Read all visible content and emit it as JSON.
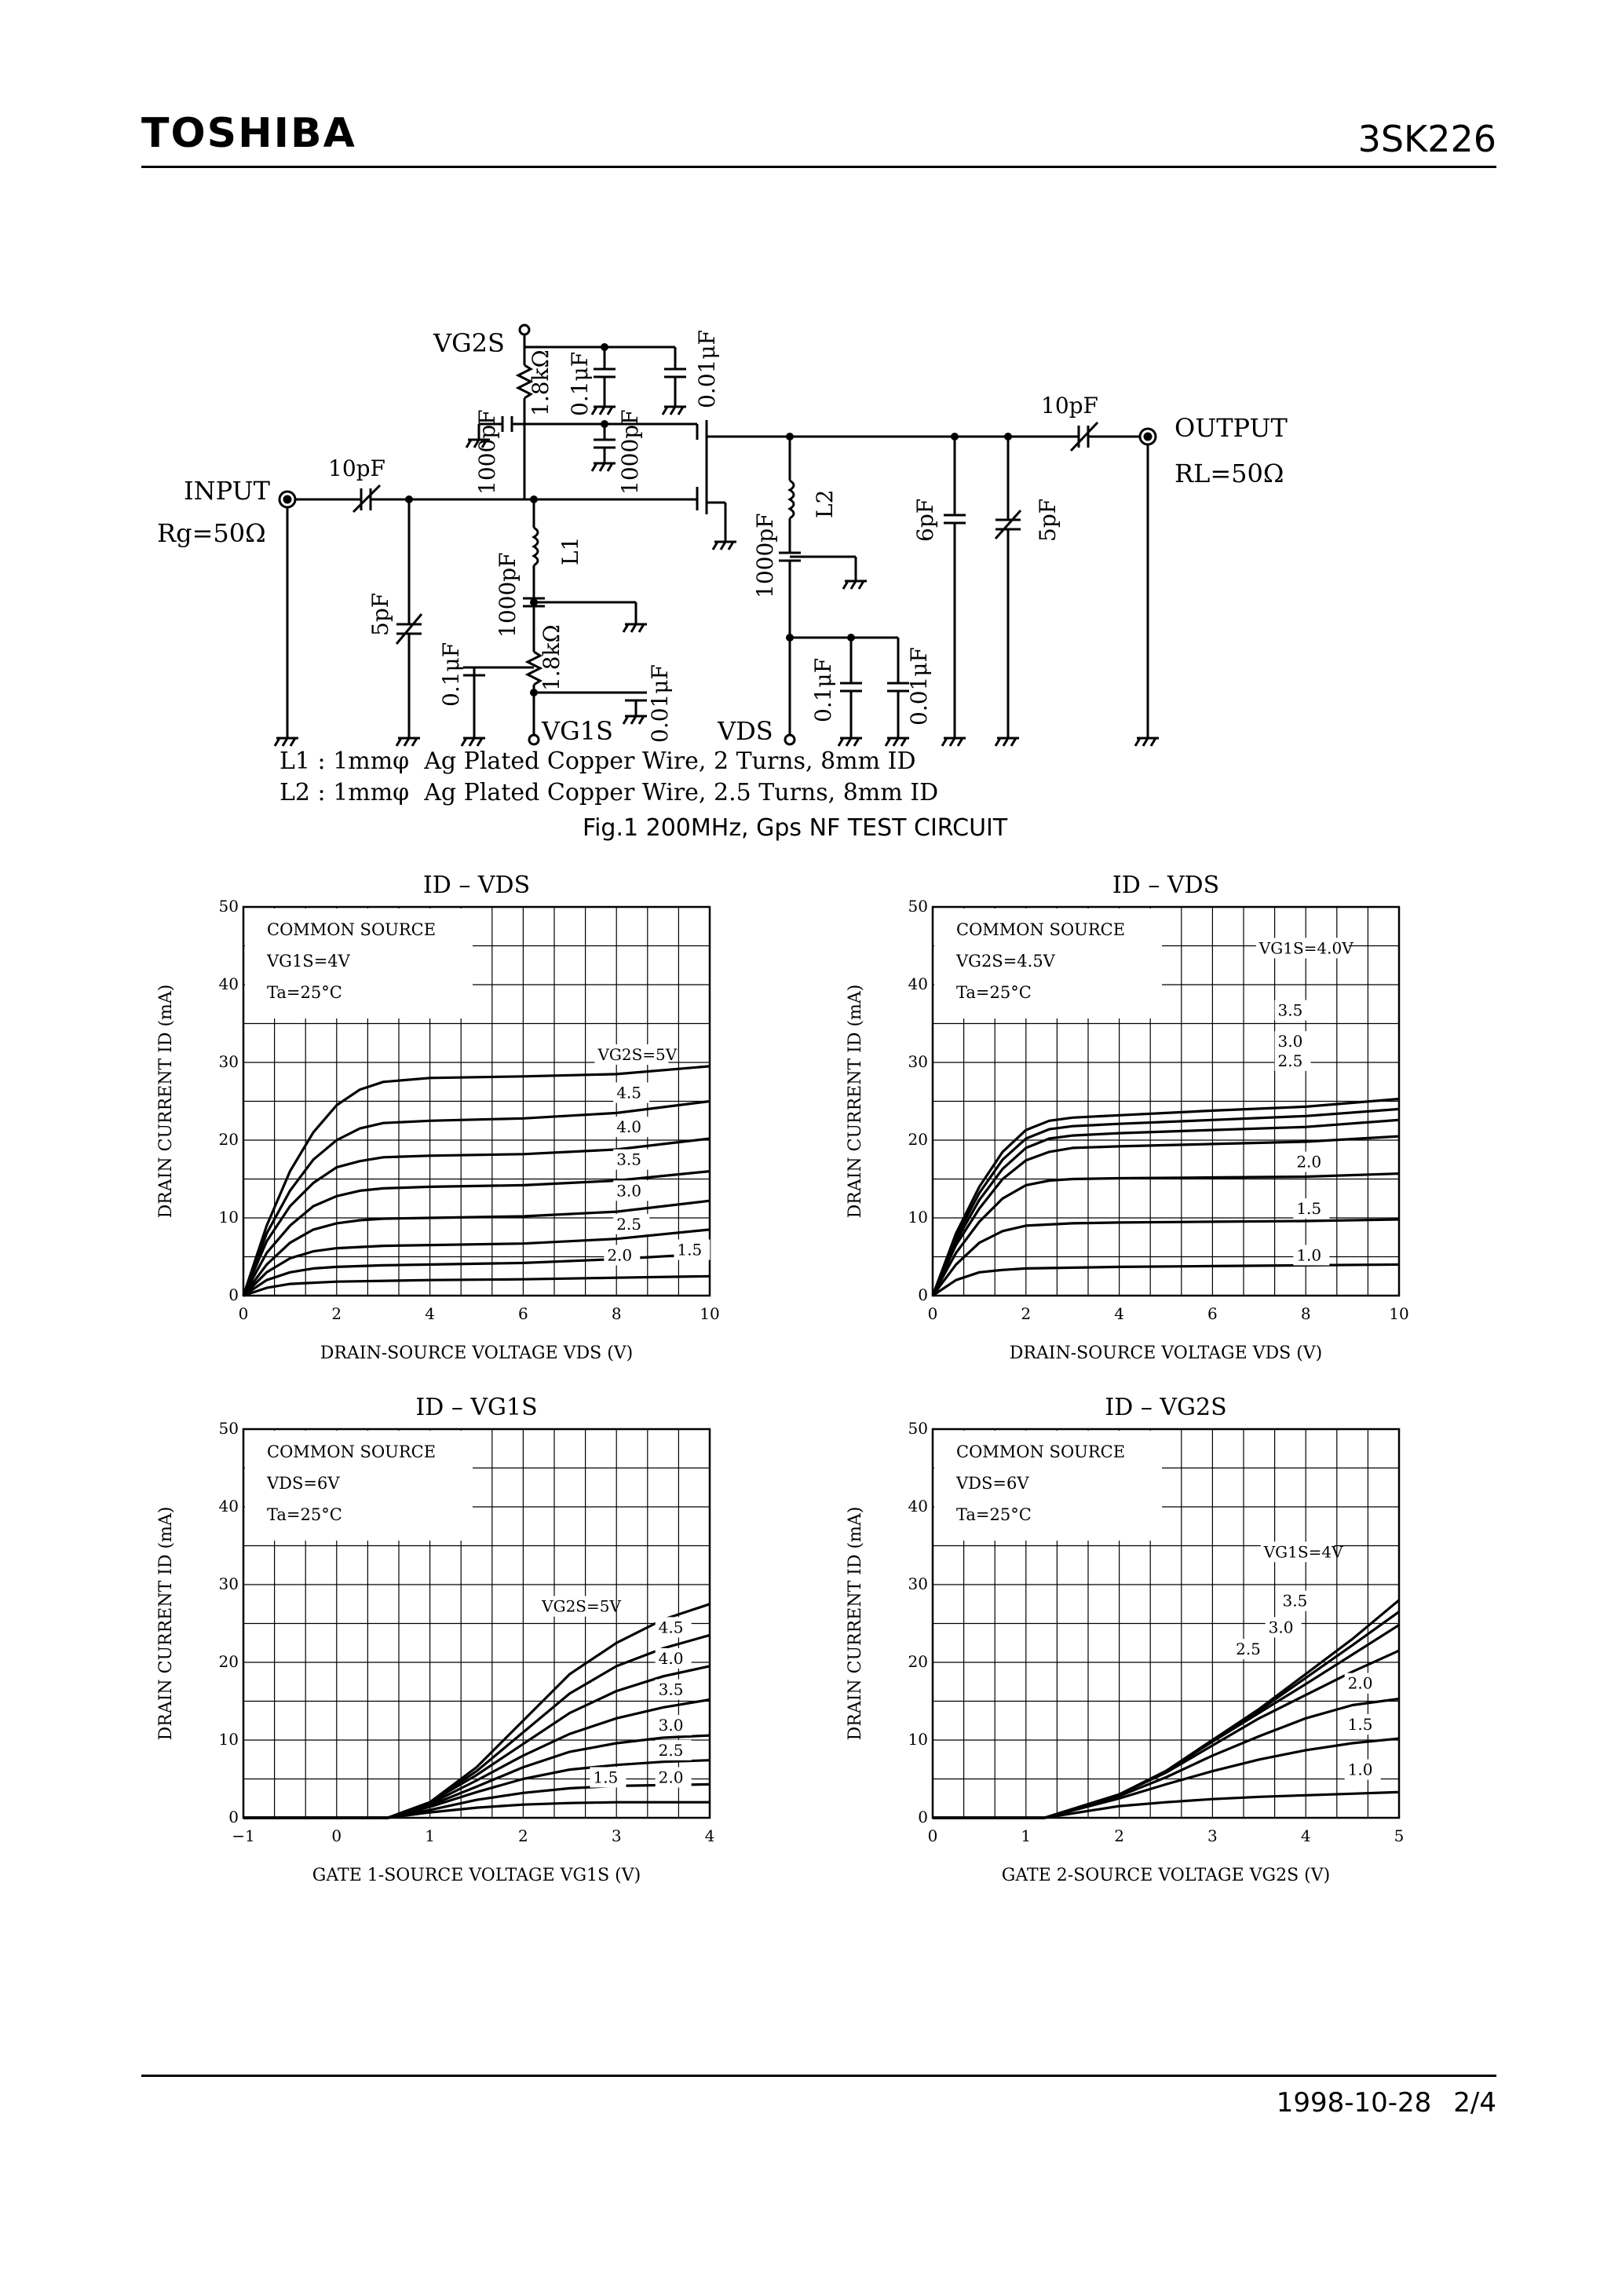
{
  "header": {
    "brand": "TOSHIBA",
    "part_number": "3SK226"
  },
  "circuit": {
    "input_label": "INPUT",
    "rg_label": "Rg=50Ω",
    "output_label": "OUTPUT",
    "rl_label": "RL=50Ω",
    "vg2s_label": "VG2S",
    "vg1s_label": "VG1S",
    "vds_label": "VDS",
    "components": [
      "10pF",
      "10pF",
      "5pF",
      "0.1μF",
      "1000pF",
      "L1",
      "1.8kΩ",
      "0.01μF",
      "1.8kΩ",
      "0.1μF",
      "0.01μF",
      "1000pF",
      "1000pF",
      "L2",
      "1000pF",
      "0.1μF",
      "0.01μF",
      "6pF",
      "5pF"
    ],
    "notes": [
      "L1 : 1mmφ  Ag Plated Copper Wire, 2 Turns, 8mm ID",
      "L2 : 1mmφ  Ag Plated Copper Wire, 2.5 Turns, 8mm ID"
    ],
    "caption": "Fig.1  200MHz, Gps NF TEST CIRCUIT"
  },
  "chart_data": [
    {
      "type": "line",
      "title": "ID – VDS",
      "xlabel": "DRAIN-SOURCE VOLTAGE  VDS  (V)",
      "ylabel": "DRAIN CURRENT  ID  (mA)",
      "xlim": [
        0,
        10
      ],
      "ylim": [
        0,
        50
      ],
      "xticks": [
        "0",
        "2",
        "4",
        "6",
        "8",
        "10"
      ],
      "yticks": [
        "0",
        "10",
        "20",
        "30",
        "40",
        "50"
      ],
      "grid": true,
      "conditions": [
        "COMMON SOURCE",
        "VG1S=4V",
        "Ta=25°C"
      ],
      "series": [
        {
          "name": "VG2S=5V",
          "x": [
            0,
            0.5,
            1,
            1.5,
            2,
            2.5,
            3,
            4,
            6,
            8,
            10
          ],
          "y": [
            0,
            9,
            16,
            21,
            24.5,
            26.5,
            27.5,
            28,
            28.2,
            28.5,
            29.5
          ]
        },
        {
          "name": "4.5",
          "x": [
            0,
            0.5,
            1,
            1.5,
            2,
            2.5,
            3,
            4,
            6,
            8,
            10
          ],
          "y": [
            0,
            8,
            13.5,
            17.5,
            20,
            21.5,
            22.2,
            22.5,
            22.8,
            23.5,
            25
          ]
        },
        {
          "name": "4.0",
          "x": [
            0,
            0.5,
            1,
            1.5,
            2,
            2.5,
            3,
            4,
            6,
            8,
            10
          ],
          "y": [
            0,
            7,
            11.5,
            14.5,
            16.5,
            17.3,
            17.8,
            18,
            18.2,
            18.8,
            20.2
          ]
        },
        {
          "name": "3.5",
          "x": [
            0,
            0.5,
            1,
            1.5,
            2,
            2.5,
            3,
            4,
            6,
            8,
            10
          ],
          "y": [
            0,
            5.5,
            9,
            11.5,
            12.8,
            13.5,
            13.8,
            14,
            14.2,
            14.8,
            16
          ]
        },
        {
          "name": "3.0",
          "x": [
            0,
            0.5,
            1,
            1.5,
            2,
            2.5,
            3,
            4,
            6,
            8,
            10
          ],
          "y": [
            0,
            4,
            6.8,
            8.5,
            9.3,
            9.7,
            9.9,
            10,
            10.2,
            10.8,
            12.2
          ]
        },
        {
          "name": "2.5",
          "x": [
            0,
            0.5,
            1,
            1.5,
            2,
            3,
            4,
            6,
            8,
            10
          ],
          "y": [
            0,
            3,
            4.8,
            5.7,
            6.1,
            6.4,
            6.5,
            6.7,
            7.3,
            8.5
          ]
        },
        {
          "name": "2.0",
          "x": [
            0,
            0.5,
            1,
            1.5,
            2,
            3,
            4,
            6,
            8,
            10
          ],
          "y": [
            0,
            2,
            3,
            3.5,
            3.7,
            3.9,
            4,
            4.2,
            4.7,
            5.4
          ]
        },
        {
          "name": "1.5",
          "x": [
            0,
            0.5,
            1,
            2,
            4,
            6,
            8,
            10
          ],
          "y": [
            0,
            1,
            1.5,
            1.8,
            2,
            2.1,
            2.3,
            2.5
          ]
        }
      ],
      "labels": [
        {
          "text": "VG2S=5V"
        },
        {
          "text": "4.5"
        },
        {
          "text": "4.0"
        },
        {
          "text": "3.5"
        },
        {
          "text": "3.0"
        },
        {
          "text": "2.5"
        },
        {
          "text": "2.0"
        },
        {
          "text": "1.5"
        }
      ]
    },
    {
      "type": "line",
      "title": "ID – VDS",
      "xlabel": "DRAIN-SOURCE VOLTAGE  VDS  (V)",
      "ylabel": "DRAIN CURRENT  ID  (mA)",
      "xlim": [
        0,
        10
      ],
      "ylim": [
        0,
        50
      ],
      "xticks": [
        "0",
        "2",
        "4",
        "6",
        "8",
        "10"
      ],
      "yticks": [
        "0",
        "10",
        "20",
        "30",
        "40",
        "50"
      ],
      "grid": true,
      "conditions": [
        "COMMON SOURCE",
        "VG2S=4.5V",
        "Ta=25°C"
      ],
      "series": [
        {
          "name": "VG1S=4.0V",
          "x": [
            0,
            0.5,
            1,
            1.5,
            2,
            2.5,
            3,
            4,
            6,
            8,
            10
          ],
          "y": [
            0,
            8,
            14,
            18.5,
            21.3,
            22.5,
            22.9,
            23.2,
            23.8,
            24.3,
            25.3
          ]
        },
        {
          "name": "3.5",
          "x": [
            0,
            0.5,
            1,
            1.5,
            2,
            2.5,
            3,
            4,
            6,
            8,
            10
          ],
          "y": [
            0,
            7.5,
            13.2,
            17.5,
            20.2,
            21.4,
            21.8,
            22.1,
            22.6,
            23.1,
            24
          ]
        },
        {
          "name": "3.0",
          "x": [
            0,
            0.5,
            1,
            1.5,
            2,
            2.5,
            3,
            4,
            6,
            8,
            10
          ],
          "y": [
            0,
            7,
            12.3,
            16.3,
            19,
            20.2,
            20.6,
            20.9,
            21.3,
            21.7,
            22.6
          ]
        },
        {
          "name": "2.5",
          "x": [
            0,
            0.5,
            1,
            1.5,
            2,
            2.5,
            3,
            4,
            6,
            8,
            10
          ],
          "y": [
            0,
            6.5,
            11.2,
            15,
            17.4,
            18.5,
            19,
            19.2,
            19.5,
            19.8,
            20.5
          ]
        },
        {
          "name": "2.0",
          "x": [
            0,
            0.5,
            1,
            1.5,
            2,
            2.5,
            3,
            4,
            6,
            8,
            10
          ],
          "y": [
            0,
            5.5,
            9.5,
            12.5,
            14.2,
            14.8,
            15,
            15.1,
            15.2,
            15.3,
            15.7
          ]
        },
        {
          "name": "1.5",
          "x": [
            0,
            0.5,
            1,
            1.5,
            2,
            3,
            4,
            6,
            8,
            10
          ],
          "y": [
            0,
            4,
            6.8,
            8.3,
            9,
            9.3,
            9.4,
            9.5,
            9.6,
            9.8
          ]
        },
        {
          "name": "1.0",
          "x": [
            0,
            0.5,
            1,
            1.5,
            2,
            3,
            4,
            6,
            8,
            10
          ],
          "y": [
            0,
            2,
            3,
            3.3,
            3.5,
            3.6,
            3.7,
            3.8,
            3.9,
            4
          ]
        }
      ],
      "labels": [
        {
          "text": "VG1S=4.0V"
        },
        {
          "text": "3.5"
        },
        {
          "text": "3.0"
        },
        {
          "text": "2.5"
        },
        {
          "text": "2.0"
        },
        {
          "text": "1.5"
        },
        {
          "text": "1.0"
        }
      ]
    },
    {
      "type": "line",
      "title": "ID – VG1S",
      "xlabel": "GATE 1-SOURCE VOLTAGE  VG1S  (V)",
      "ylabel": "DRAIN CURRENT  ID  (mA)",
      "xlim": [
        -1,
        4
      ],
      "ylim": [
        0,
        50
      ],
      "xticks": [
        "−1",
        "0",
        "1",
        "2",
        "3",
        "4"
      ],
      "yticks": [
        "0",
        "10",
        "20",
        "30",
        "40",
        "50"
      ],
      "grid": true,
      "conditions": [
        "COMMON SOURCE",
        "VDS=6V",
        "Ta=25°C"
      ],
      "series": [
        {
          "name": "VG2S=5V",
          "x": [
            -1,
            0.55,
            1,
            1.5,
            2,
            2.5,
            3,
            3.5,
            4
          ],
          "y": [
            0,
            0,
            2,
            6.5,
            12.5,
            18.5,
            22.5,
            25.5,
            27.5
          ]
        },
        {
          "name": "4.5",
          "x": [
            -1,
            0.55,
            1,
            1.5,
            2,
            2.5,
            3,
            3.5,
            4
          ],
          "y": [
            0,
            0,
            2,
            6,
            11,
            16,
            19.5,
            21.8,
            23.5
          ]
        },
        {
          "name": "4.0",
          "x": [
            -1,
            0.55,
            1,
            1.5,
            2,
            2.5,
            3,
            3.5,
            4
          ],
          "y": [
            0,
            0,
            2,
            5.5,
            9.5,
            13.5,
            16.3,
            18.2,
            19.5
          ]
        },
        {
          "name": "3.5",
          "x": [
            -1,
            0.55,
            1,
            1.5,
            2,
            2.5,
            3,
            3.5,
            4
          ],
          "y": [
            0,
            0,
            1.8,
            4.8,
            8,
            10.8,
            12.8,
            14.2,
            15.2
          ]
        },
        {
          "name": "3.0",
          "x": [
            -1,
            0.55,
            1,
            1.5,
            2,
            2.5,
            3,
            3.5,
            4
          ],
          "y": [
            0,
            0,
            1.6,
            4,
            6.5,
            8.5,
            9.6,
            10.3,
            10.6
          ]
        },
        {
          "name": "2.5",
          "x": [
            -1,
            0.55,
            1,
            1.5,
            2,
            2.5,
            3,
            3.5,
            4
          ],
          "y": [
            0,
            0,
            1.4,
            3.3,
            5,
            6.2,
            6.8,
            7.2,
            7.4
          ]
        },
        {
          "name": "2.0",
          "x": [
            -1,
            0.55,
            1,
            1.5,
            2,
            2.5,
            3,
            3.5,
            4
          ],
          "y": [
            0,
            0,
            1,
            2.3,
            3.2,
            3.8,
            4.1,
            4.2,
            4.3
          ]
        },
        {
          "name": "1.5",
          "x": [
            -1,
            0.55,
            1,
            1.5,
            2,
            2.5,
            3,
            3.5,
            4
          ],
          "y": [
            0,
            0,
            0.7,
            1.3,
            1.7,
            1.9,
            2,
            2,
            2
          ]
        }
      ],
      "labels": [
        {
          "text": "VG2S=5V"
        },
        {
          "text": "4.5"
        },
        {
          "text": "4.0"
        },
        {
          "text": "3.5"
        },
        {
          "text": "3.0"
        },
        {
          "text": "2.5"
        },
        {
          "text": "2.0"
        },
        {
          "text": "1.5"
        }
      ]
    },
    {
      "type": "line",
      "title": "ID – VG2S",
      "xlabel": "GATE 2-SOURCE VOLTAGE  VG2S  (V)",
      "ylabel": "DRAIN CURRENT  ID  (mA)",
      "xlim": [
        0,
        5
      ],
      "ylim": [
        0,
        50
      ],
      "xticks": [
        "0",
        "1",
        "2",
        "3",
        "4",
        "5"
      ],
      "yticks": [
        "0",
        "10",
        "20",
        "30",
        "40",
        "50"
      ],
      "grid": true,
      "conditions": [
        "COMMON SOURCE",
        "VDS=6V",
        "Ta=25°C"
      ],
      "series": [
        {
          "name": "VG1S=4V",
          "x": [
            0,
            1.2,
            2,
            2.5,
            3,
            3.5,
            4,
            4.5,
            5
          ],
          "y": [
            0,
            0,
            3,
            6,
            10,
            14,
            18.5,
            23,
            28
          ]
        },
        {
          "name": "3.5",
          "x": [
            0,
            1.2,
            2,
            2.5,
            3,
            3.5,
            4,
            4.5,
            5
          ],
          "y": [
            0,
            0,
            3,
            6,
            10,
            13.8,
            18,
            22.2,
            26.5
          ]
        },
        {
          "name": "3.0",
          "x": [
            0,
            1.2,
            2,
            2.5,
            3,
            3.5,
            4,
            4.5,
            5
          ],
          "y": [
            0,
            0,
            3,
            6,
            9.8,
            13.5,
            17.2,
            21,
            24.8
          ]
        },
        {
          "name": "2.5",
          "x": [
            0,
            1.2,
            2,
            2.5,
            3,
            3.5,
            4,
            4.5,
            5
          ],
          "y": [
            0,
            0,
            3,
            5.8,
            9.3,
            12.8,
            15.8,
            18.8,
            21.5
          ]
        },
        {
          "name": "2.0",
          "x": [
            0,
            1.2,
            2,
            2.5,
            3,
            3.5,
            4,
            4.5,
            5
          ],
          "y": [
            0,
            0,
            2.8,
            5.2,
            8,
            10.5,
            12.8,
            14.5,
            15.3
          ]
        },
        {
          "name": "1.5",
          "x": [
            0,
            1.2,
            2,
            2.5,
            3,
            3.5,
            4,
            4.5,
            5
          ],
          "y": [
            0,
            0,
            2.5,
            4.3,
            6,
            7.5,
            8.7,
            9.6,
            10.2
          ]
        },
        {
          "name": "1.0",
          "x": [
            0,
            1.2,
            2,
            2.5,
            3,
            3.5,
            4,
            4.5,
            5
          ],
          "y": [
            0,
            0,
            1.5,
            2,
            2.4,
            2.7,
            2.9,
            3.1,
            3.3
          ]
        }
      ],
      "labels": [
        {
          "text": "VG1S=4V"
        },
        {
          "text": "3.5"
        },
        {
          "text": "3.0"
        },
        {
          "text": "2.5"
        },
        {
          "text": "2.0"
        },
        {
          "text": "1.5"
        },
        {
          "text": "1.0"
        }
      ]
    }
  ],
  "footer": {
    "date": "1998-10-28",
    "page": "2/4"
  }
}
